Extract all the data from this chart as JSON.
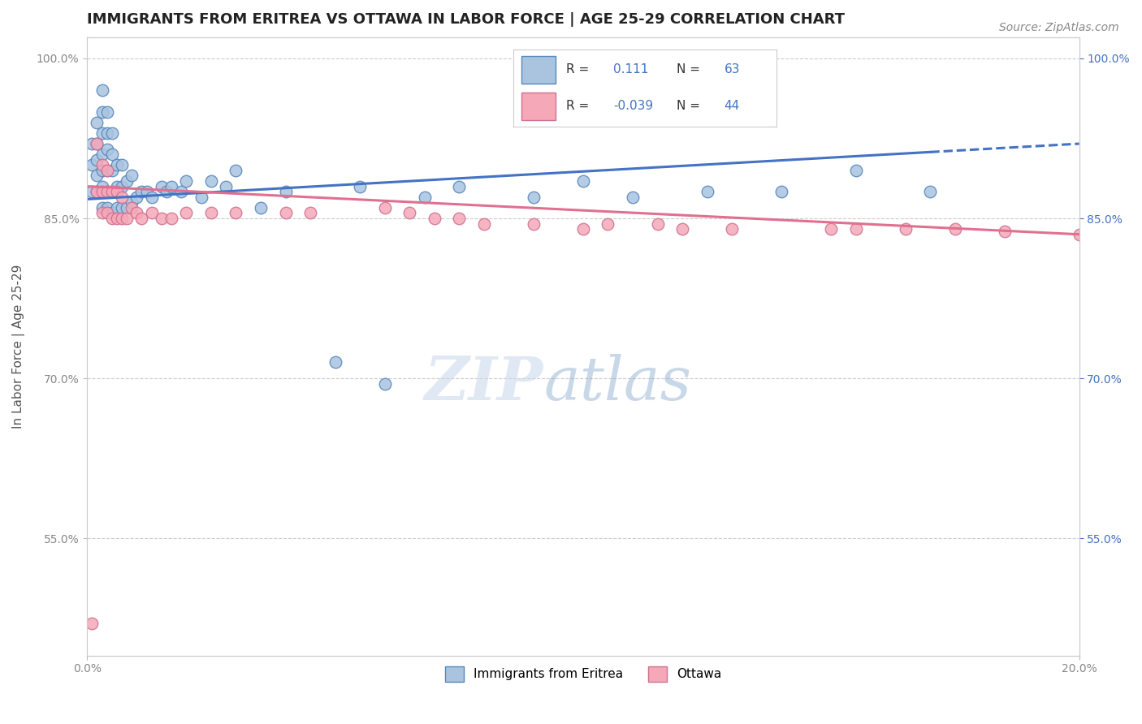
{
  "title": "IMMIGRANTS FROM ERITREA VS OTTAWA IN LABOR FORCE | AGE 25-29 CORRELATION CHART",
  "source_text": "Source: ZipAtlas.com",
  "ylabel": "In Labor Force | Age 25-29",
  "xlim": [
    0.0,
    0.2
  ],
  "ylim": [
    0.44,
    1.02
  ],
  "ytick_positions": [
    0.55,
    0.7,
    0.85,
    1.0
  ],
  "grid_color": "#cccccc",
  "background_color": "#ffffff",
  "watermark_line1": "ZIP",
  "watermark_line2": "atlas",
  "blue_scatter_x": [
    0.001,
    0.001,
    0.001,
    0.002,
    0.002,
    0.002,
    0.002,
    0.002,
    0.003,
    0.003,
    0.003,
    0.003,
    0.003,
    0.003,
    0.003,
    0.004,
    0.004,
    0.004,
    0.004,
    0.004,
    0.004,
    0.005,
    0.005,
    0.005,
    0.005,
    0.005,
    0.006,
    0.006,
    0.006,
    0.007,
    0.007,
    0.007,
    0.008,
    0.008,
    0.009,
    0.009,
    0.01,
    0.011,
    0.012,
    0.013,
    0.015,
    0.016,
    0.017,
    0.019,
    0.02,
    0.023,
    0.025,
    0.028,
    0.03,
    0.035,
    0.04,
    0.05,
    0.055,
    0.06,
    0.068,
    0.075,
    0.09,
    0.1,
    0.11,
    0.125,
    0.14,
    0.155,
    0.17
  ],
  "blue_scatter_y": [
    0.875,
    0.9,
    0.92,
    0.875,
    0.89,
    0.905,
    0.92,
    0.94,
    0.86,
    0.88,
    0.895,
    0.91,
    0.93,
    0.95,
    0.97,
    0.86,
    0.875,
    0.895,
    0.915,
    0.93,
    0.95,
    0.855,
    0.875,
    0.895,
    0.91,
    0.93,
    0.86,
    0.88,
    0.9,
    0.86,
    0.88,
    0.9,
    0.86,
    0.885,
    0.865,
    0.89,
    0.87,
    0.875,
    0.875,
    0.87,
    0.88,
    0.875,
    0.88,
    0.875,
    0.885,
    0.87,
    0.885,
    0.88,
    0.895,
    0.86,
    0.875,
    0.715,
    0.88,
    0.695,
    0.87,
    0.88,
    0.87,
    0.885,
    0.87,
    0.875,
    0.875,
    0.895,
    0.875
  ],
  "pink_scatter_x": [
    0.001,
    0.002,
    0.002,
    0.003,
    0.003,
    0.003,
    0.004,
    0.004,
    0.004,
    0.005,
    0.005,
    0.006,
    0.006,
    0.007,
    0.007,
    0.008,
    0.009,
    0.01,
    0.011,
    0.013,
    0.015,
    0.017,
    0.02,
    0.025,
    0.03,
    0.04,
    0.045,
    0.06,
    0.065,
    0.07,
    0.075,
    0.08,
    0.09,
    0.1,
    0.105,
    0.115,
    0.12,
    0.13,
    0.15,
    0.155,
    0.165,
    0.175,
    0.185,
    0.2
  ],
  "pink_scatter_y": [
    0.47,
    0.875,
    0.92,
    0.855,
    0.875,
    0.9,
    0.855,
    0.875,
    0.895,
    0.85,
    0.875,
    0.85,
    0.875,
    0.85,
    0.87,
    0.85,
    0.86,
    0.855,
    0.85,
    0.855,
    0.85,
    0.85,
    0.855,
    0.855,
    0.855,
    0.855,
    0.855,
    0.86,
    0.855,
    0.85,
    0.85,
    0.845,
    0.845,
    0.84,
    0.845,
    0.845,
    0.84,
    0.84,
    0.84,
    0.84,
    0.84,
    0.84,
    0.838,
    0.835
  ],
  "blue_line_x0": 0.0,
  "blue_line_y0": 0.868,
  "blue_line_x1": 0.2,
  "blue_line_y1": 0.92,
  "blue_line_solid_end": 0.17,
  "pink_line_x0": 0.0,
  "pink_line_y0": 0.88,
  "pink_line_x1": 0.2,
  "pink_line_y1": 0.835,
  "blue_line_color": "#4472c4",
  "pink_line_color": "#e07090",
  "blue_scatter_color": "#aac4e0",
  "pink_scatter_color": "#f4a8b8",
  "blue_scatter_edge": "#5588bb",
  "pink_scatter_edge": "#d07090",
  "title_fontsize": 13,
  "axis_label_fontsize": 11,
  "tick_fontsize": 10,
  "legend_fontsize": 11,
  "source_fontsize": 10,
  "scatter_size": 110,
  "line_width": 2.2
}
